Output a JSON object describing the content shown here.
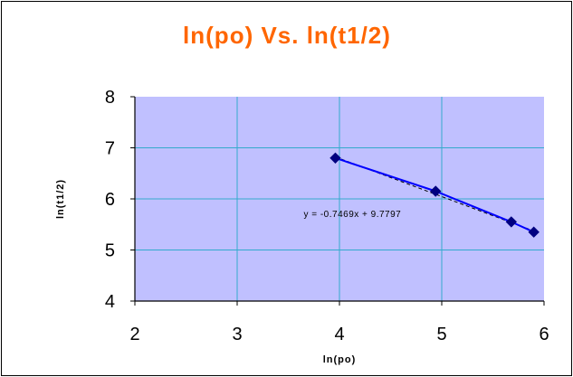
{
  "chart_data": {
    "type": "line",
    "title": "ln(po) Vs. ln(t1/2)",
    "xlabel": "ln(po)",
    "ylabel": "ln(t1/2)",
    "xlim": [
      2,
      6
    ],
    "ylim": [
      4,
      8
    ],
    "x_ticks": [
      "2",
      "3",
      "4",
      "5",
      "6"
    ],
    "y_ticks": [
      "4",
      "5",
      "6",
      "7",
      "8"
    ],
    "grid": true,
    "series": [
      {
        "x": [
          3.96,
          4.94,
          5.68,
          5.9
        ],
        "y": [
          6.8,
          6.15,
          5.55,
          5.35
        ],
        "marker": "diamond"
      }
    ],
    "trendline": {
      "type": "linear",
      "slope": -0.7469,
      "intercept": 9.7797,
      "equation": "y = -0.7469x + 9.7797",
      "x_range": [
        3.96,
        5.9
      ]
    },
    "colors": {
      "title": "#FF6600",
      "plot_background": "#C0C0FF",
      "gridlines": "#33AACC",
      "series_line": "#0000FF",
      "markers": "#000080",
      "trendline": "#000000"
    }
  }
}
